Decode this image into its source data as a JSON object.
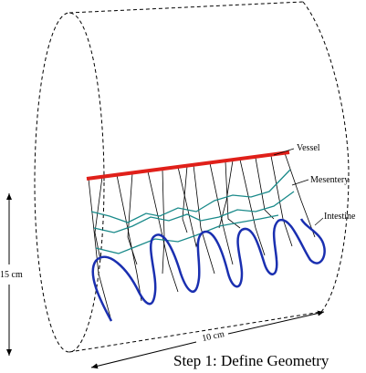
{
  "labels": {
    "vessel": "Vessel",
    "mesentery": "Mesentery",
    "intestine": "Intestine",
    "height": "15 cm",
    "length": "10 cm"
  },
  "caption": "Step 1: Define Geometry"
}
